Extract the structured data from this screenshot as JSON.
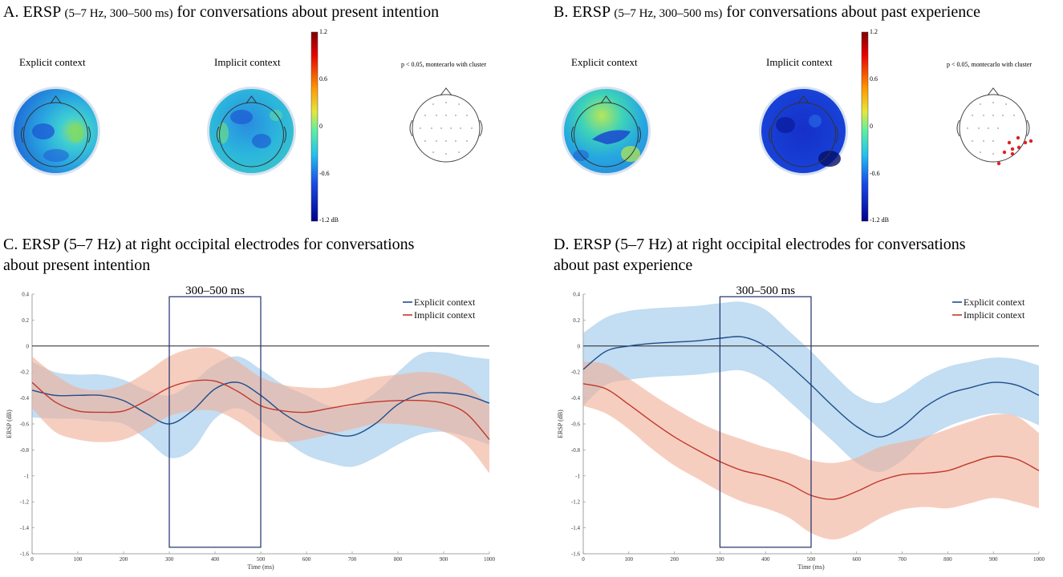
{
  "panels": {
    "A": {
      "letter": "A.",
      "title_main": "ERSP",
      "title_small": "(5–7 Hz, 300–500 ms)",
      "title_rest": "for conversations about present intention",
      "explicit_label": "Explicit context",
      "implicit_label": "Implicit context",
      "stat_note": "p < 0.05, montecarlo with cluster",
      "colorbar_ticks": [
        "1.2",
        "0.6",
        "0",
        "-0.6",
        "-1.2 dB"
      ]
    },
    "B": {
      "letter": "B.",
      "title_main": "ERSP",
      "title_small": "(5–7 Hz, 300–500 ms)",
      "title_rest": "for conversations about past experience",
      "explicit_label": "Explicit context",
      "implicit_label": "Implicit context",
      "stat_note": "p < 0.05, montecarlo with cluster",
      "colorbar_ticks": [
        "1.2",
        "0.6",
        "0",
        "-0.6",
        "-1.2 dB"
      ]
    },
    "C": {
      "title_line1": "C. ERSP (5–7 Hz) at right occipital electrodes for conversations",
      "title_line2": "about present intention"
    },
    "D": {
      "title_line1": "D. ERSP (5–7 Hz) at right occipital electrodes for conversations",
      "title_line2": "about past experience"
    }
  },
  "chart_data": [
    {
      "id": "C",
      "type": "line",
      "title": "ERSP (5–7 Hz) at right occipital electrodes for conversations about present intention",
      "xlabel": "Time (ms)",
      "ylabel": "ERSP (dB)",
      "xlim": [
        0,
        1000
      ],
      "ylim": [
        -1.6,
        0.4
      ],
      "xticks": [
        0,
        100,
        200,
        300,
        400,
        500,
        600,
        700,
        800,
        900,
        1000
      ],
      "yticks": [
        0.4,
        0.2,
        0,
        -0.2,
        -0.4,
        -0.6,
        -0.8,
        -1,
        -1.2,
        -1.4,
        -1.6
      ],
      "window_label": "300–500 ms",
      "window": [
        300,
        500
      ],
      "x": [
        0,
        50,
        100,
        150,
        200,
        250,
        300,
        350,
        400,
        450,
        500,
        550,
        600,
        650,
        700,
        750,
        800,
        850,
        900,
        950,
        1000
      ],
      "series": [
        {
          "name": "Explicit context",
          "color": "#1f4e8c",
          "band_color": "#9ec8ea",
          "values": [
            -0.34,
            -0.38,
            -0.38,
            -0.38,
            -0.42,
            -0.52,
            -0.6,
            -0.5,
            -0.33,
            -0.28,
            -0.38,
            -0.52,
            -0.62,
            -0.67,
            -0.69,
            -0.6,
            -0.45,
            -0.37,
            -0.36,
            -0.38,
            -0.44
          ],
          "upper": [
            -0.12,
            -0.2,
            -0.22,
            -0.22,
            -0.26,
            -0.34,
            -0.38,
            -0.28,
            -0.14,
            -0.08,
            -0.18,
            -0.3,
            -0.38,
            -0.46,
            -0.46,
            -0.36,
            -0.2,
            -0.06,
            -0.05,
            -0.08,
            -0.1
          ],
          "lower": [
            -0.55,
            -0.56,
            -0.56,
            -0.58,
            -0.6,
            -0.72,
            -0.86,
            -0.8,
            -0.56,
            -0.48,
            -0.58,
            -0.72,
            -0.84,
            -0.9,
            -0.93,
            -0.86,
            -0.76,
            -0.68,
            -0.66,
            -0.7,
            -0.76
          ]
        },
        {
          "name": "Implicit context",
          "color": "#c0392b",
          "band_color": "#f0b09a",
          "values": [
            -0.28,
            -0.43,
            -0.5,
            -0.51,
            -0.5,
            -0.42,
            -0.32,
            -0.27,
            -0.27,
            -0.35,
            -0.46,
            -0.5,
            -0.51,
            -0.48,
            -0.45,
            -0.43,
            -0.42,
            -0.42,
            -0.44,
            -0.52,
            -0.72
          ],
          "upper": [
            -0.08,
            -0.22,
            -0.32,
            -0.34,
            -0.3,
            -0.2,
            -0.08,
            -0.02,
            -0.02,
            -0.12,
            -0.24,
            -0.3,
            -0.32,
            -0.32,
            -0.28,
            -0.24,
            -0.22,
            -0.2,
            -0.22,
            -0.3,
            -0.46
          ],
          "lower": [
            -0.48,
            -0.66,
            -0.72,
            -0.74,
            -0.72,
            -0.64,
            -0.54,
            -0.5,
            -0.5,
            -0.58,
            -0.7,
            -0.74,
            -0.72,
            -0.68,
            -0.64,
            -0.6,
            -0.6,
            -0.62,
            -0.66,
            -0.76,
            -0.98
          ]
        }
      ]
    },
    {
      "id": "D",
      "type": "line",
      "title": "ERSP (5–7 Hz) at right occipital electrodes for conversations about past experience",
      "xlabel": "Time (ms)",
      "ylabel": "ERSP (dB)",
      "xlim": [
        0,
        1000
      ],
      "ylim": [
        -1.6,
        0.4
      ],
      "xticks": [
        0,
        100,
        200,
        300,
        400,
        500,
        600,
        700,
        800,
        900,
        1000
      ],
      "yticks": [
        0.4,
        0.2,
        0,
        -0.2,
        -0.4,
        -0.6,
        -0.8,
        -1,
        -1.2,
        -1.4,
        -1.6
      ],
      "window_label": "300–500 ms",
      "window": [
        300,
        500
      ],
      "x": [
        0,
        50,
        100,
        150,
        200,
        250,
        300,
        350,
        400,
        450,
        500,
        550,
        600,
        650,
        700,
        750,
        800,
        850,
        900,
        950,
        1000
      ],
      "series": [
        {
          "name": "Explicit context",
          "color": "#1f4e8c",
          "band_color": "#9ec8ea",
          "values": [
            -0.18,
            -0.04,
            0.0,
            0.02,
            0.03,
            0.04,
            0.06,
            0.07,
            0.0,
            -0.14,
            -0.3,
            -0.47,
            -0.62,
            -0.7,
            -0.62,
            -0.47,
            -0.37,
            -0.32,
            -0.28,
            -0.3,
            -0.38
          ],
          "upper": [
            0.1,
            0.22,
            0.27,
            0.29,
            0.3,
            0.31,
            0.33,
            0.34,
            0.28,
            0.12,
            -0.04,
            -0.22,
            -0.38,
            -0.44,
            -0.36,
            -0.24,
            -0.16,
            -0.12,
            -0.09,
            -0.1,
            -0.15
          ],
          "lower": [
            -0.46,
            -0.3,
            -0.26,
            -0.24,
            -0.23,
            -0.22,
            -0.2,
            -0.19,
            -0.27,
            -0.42,
            -0.58,
            -0.74,
            -0.9,
            -0.97,
            -0.88,
            -0.72,
            -0.62,
            -0.56,
            -0.52,
            -0.54,
            -0.61
          ]
        },
        {
          "name": "Implicit context",
          "color": "#c0392b",
          "band_color": "#f0b09a",
          "values": [
            -0.29,
            -0.33,
            -0.45,
            -0.58,
            -0.7,
            -0.8,
            -0.89,
            -0.96,
            -1.0,
            -1.06,
            -1.15,
            -1.18,
            -1.12,
            -1.04,
            -0.99,
            -0.98,
            -0.96,
            -0.9,
            -0.85,
            -0.87,
            -0.96
          ],
          "upper": [
            -0.12,
            -0.14,
            -0.25,
            -0.37,
            -0.48,
            -0.58,
            -0.66,
            -0.72,
            -0.78,
            -0.82,
            -0.88,
            -0.9,
            -0.86,
            -0.78,
            -0.74,
            -0.7,
            -0.64,
            -0.58,
            -0.53,
            -0.54,
            -0.67
          ],
          "lower": [
            -0.46,
            -0.52,
            -0.64,
            -0.79,
            -0.92,
            -1.02,
            -1.12,
            -1.2,
            -1.25,
            -1.32,
            -1.44,
            -1.49,
            -1.43,
            -1.33,
            -1.26,
            -1.24,
            -1.25,
            -1.21,
            -1.17,
            -1.2,
            -1.25
          ]
        }
      ]
    }
  ]
}
